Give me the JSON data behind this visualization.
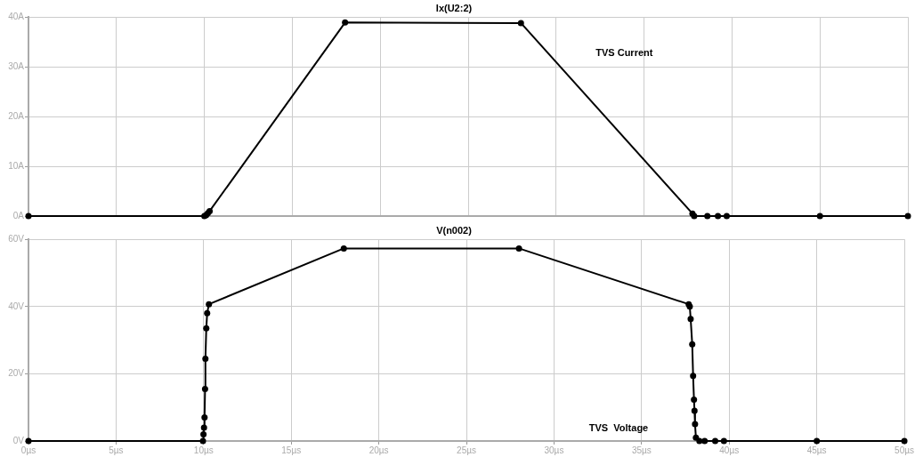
{
  "chart_data": [
    {
      "type": "line",
      "title": "Ix(U2:2)",
      "annotations": [
        "TVS Current"
      ],
      "x": [
        0,
        10,
        10.1,
        10.2,
        10.3,
        18,
        28,
        37.75,
        37.85,
        38.6,
        39.2,
        39.7,
        45,
        50
      ],
      "series": [
        {
          "color": "#000000",
          "values": [
            0,
            0,
            0.2,
            0.6,
            1,
            38.9,
            38.8,
            0.5,
            0,
            0,
            0,
            0,
            0,
            0
          ]
        }
      ],
      "xlim": [
        0,
        50
      ],
      "ylim": [
        0,
        40
      ],
      "xticks": [
        {
          "value": 0,
          "label": null
        },
        {
          "value": 5,
          "label": null
        },
        {
          "value": 10,
          "label": null
        },
        {
          "value": 15,
          "label": null
        },
        {
          "value": 20,
          "label": null
        },
        {
          "value": 25,
          "label": null
        },
        {
          "value": 30,
          "label": null
        },
        {
          "value": 35,
          "label": null
        },
        {
          "value": 40,
          "label": null
        },
        {
          "value": 45,
          "label": null
        },
        {
          "value": 50,
          "label": null
        }
      ],
      "yticks": [
        {
          "value": 0,
          "label": "0A"
        },
        {
          "value": 10,
          "label": "10A"
        },
        {
          "value": 20,
          "label": "20A"
        },
        {
          "value": 30,
          "label": "30A"
        },
        {
          "value": 40,
          "label": "40A"
        }
      ],
      "tick_labels": "y",
      "grid": true,
      "marker": "circle",
      "line_style": "solid",
      "legend": false
    },
    {
      "type": "line",
      "title": "V(n002)",
      "annotations": [
        "TVS  Voltage"
      ],
      "x": [
        0,
        9.96,
        9.99,
        10.02,
        10.05,
        10.08,
        10.1,
        10.15,
        10.2,
        10.3,
        18,
        28,
        37.69,
        37.75,
        37.8,
        37.89,
        37.94,
        37.99,
        38.02,
        38.05,
        38.1,
        38.3,
        38.6,
        39.2,
        39.7,
        45,
        50
      ],
      "series": [
        {
          "color": "#000000",
          "values": [
            0,
            0,
            2,
            4,
            7,
            15.5,
            24.5,
            33.5,
            38,
            40.7,
            57.3,
            57.3,
            40.7,
            40,
            36.3,
            28.8,
            19.4,
            12.3,
            9,
            5,
            1,
            0,
            0,
            0,
            0,
            0,
            0
          ]
        }
      ],
      "xlim": [
        0,
        50
      ],
      "ylim": [
        0,
        60
      ],
      "xticks": [
        {
          "value": 0,
          "label": "0µs"
        },
        {
          "value": 5,
          "label": "5µs"
        },
        {
          "value": 10,
          "label": "10µs"
        },
        {
          "value": 15,
          "label": "15µs"
        },
        {
          "value": 20,
          "label": "20µs"
        },
        {
          "value": 25,
          "label": "25µs"
        },
        {
          "value": 30,
          "label": "30µs"
        },
        {
          "value": 35,
          "label": "35µs"
        },
        {
          "value": 40,
          "label": "40µs"
        },
        {
          "value": 45,
          "label": "45µs"
        },
        {
          "value": 50,
          "label": "50µs"
        }
      ],
      "yticks": [
        {
          "value": 0,
          "label": "0V"
        },
        {
          "value": 20,
          "label": "20V"
        },
        {
          "value": 40,
          "label": "40V"
        },
        {
          "value": 60,
          "label": "60V"
        }
      ],
      "grid": true,
      "marker": "circle",
      "line_style": "solid",
      "legend": false
    }
  ]
}
